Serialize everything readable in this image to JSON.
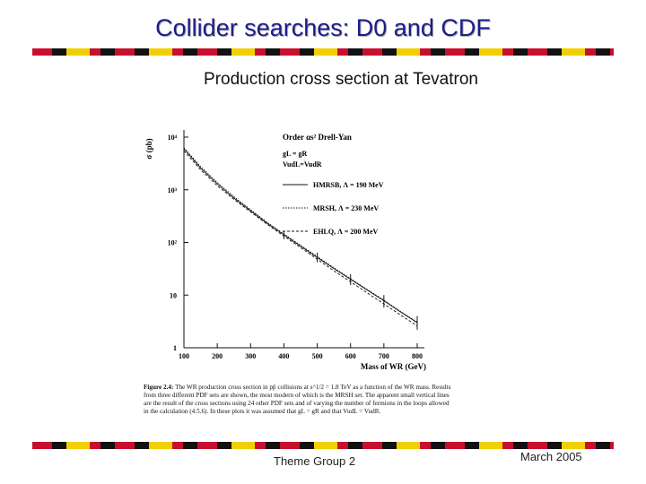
{
  "slide": {
    "title": "Collider searches: D0 and CDF",
    "subtitle": "Production cross section at Tevatron",
    "footer_left": "Theme Group 2",
    "footer_right": "March 2005"
  },
  "figure": {
    "legend_header": "Order αs² Drell-Yan",
    "legend_cond1": "gL = gR",
    "legend_cond2": "VudL=VudR",
    "caption_label": "Figure 2.4:",
    "caption_text": "The WR production cross section in pp̄ collisions at s^1/2 = 1.8 TeV as a function of the WR mass. Results from three different PDF sets are shown, the most modern of which is the MRSH set. The apparent small vertical lines are the result of the cross sections using 24 other PDF sets and of varying the number of fermions in the loops allowed in the calculation (4.5.6). In these plots it was assumed that gL = gR and that VudL = VudR."
  },
  "chart_data": {
    "type": "line",
    "xlabel": "Mass of WR (GeV)",
    "ylabel": "σ (pb)",
    "xlim": [
      100,
      800
    ],
    "ylim": [
      1,
      10000
    ],
    "y_scale": "log",
    "x_ticks": [
      "100",
      "200",
      "300",
      "400",
      "500",
      "600",
      "700",
      "800"
    ],
    "y_ticks": [
      "1",
      "10",
      "10²",
      "10³",
      "10⁴"
    ],
    "series": [
      {
        "name": "HMRSB, Λ = 190 MeV",
        "style": "solid",
        "x": [
          100,
          150,
          200,
          250,
          300,
          350,
          400,
          450,
          500,
          550,
          600,
          650,
          700,
          750,
          800
        ],
        "y": [
          6000,
          2600,
          1300,
          700,
          400,
          230,
          140,
          85,
          52,
          32,
          20,
          12.5,
          7.8,
          4.8,
          3.0
        ]
      },
      {
        "name": "MRSH, Λ = 230 MeV",
        "style": "dotted",
        "x": [
          100,
          150,
          200,
          250,
          300,
          350,
          400,
          450,
          500,
          550,
          600,
          650,
          700,
          750,
          800
        ],
        "y": [
          6300,
          2750,
          1380,
          740,
          420,
          240,
          145,
          88,
          54,
          33,
          20.5,
          12.8,
          8.0,
          4.9,
          3.05
        ]
      },
      {
        "name": "EHLQ, Λ = 200 MeV",
        "style": "dash",
        "x": [
          100,
          150,
          200,
          250,
          300,
          350,
          400,
          450,
          500,
          550,
          600,
          650,
          700,
          750,
          800
        ],
        "y": [
          5500,
          2400,
          1200,
          660,
          380,
          220,
          132,
          80,
          48,
          29,
          18,
          11,
          6.8,
          4.2,
          2.6
        ]
      }
    ],
    "error_bars": [
      {
        "x": 400,
        "lo": 115,
        "hi": 165
      },
      {
        "x": 500,
        "lo": 42,
        "hi": 64
      },
      {
        "x": 600,
        "lo": 15.5,
        "hi": 25
      },
      {
        "x": 700,
        "lo": 5.8,
        "hi": 10
      },
      {
        "x": 800,
        "lo": 2.2,
        "hi": 4.0
      }
    ],
    "grid": false,
    "legend_placement": "top-right"
  }
}
